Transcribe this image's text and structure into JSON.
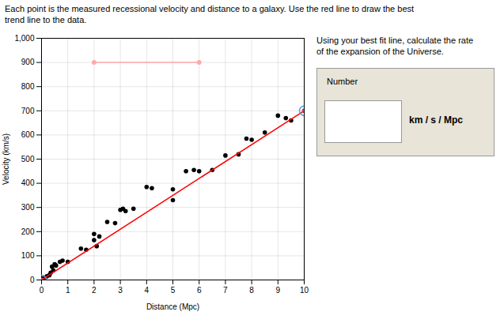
{
  "chart_data": {
    "type": "scatter",
    "title": "Each point is the measured recessional velocity and distance to a galaxy. Use the red line to draw the best\ntrend line to the data.",
    "xlabel": "Distance (Mpc)",
    "ylabel": "Velocity (km/s)",
    "xlim": [
      0,
      10
    ],
    "ylim": [
      0,
      1000
    ],
    "xticks": [
      0,
      1,
      2,
      3,
      4,
      5,
      6,
      7,
      8,
      9,
      10
    ],
    "yticks": [
      0,
      100,
      200,
      300,
      400,
      500,
      600,
      700,
      800,
      900,
      1000
    ],
    "grid": true,
    "series": [
      {
        "type": "scatter",
        "color": "#000000",
        "marker": "circle",
        "x": [
          0.0,
          0.1,
          0.2,
          0.3,
          0.35,
          0.4,
          0.45,
          0.5,
          0.55,
          0.7,
          0.8,
          1.0,
          1.5,
          1.7,
          2.0,
          2.0,
          2.1,
          2.2,
          2.5,
          2.8,
          3.0,
          3.1,
          3.2,
          3.5,
          4.0,
          4.2,
          5.0,
          5.0,
          5.5,
          5.8,
          6.0,
          6.5,
          7.0,
          7.5,
          7.8,
          8.0,
          8.5,
          9.0,
          9.3,
          9.5,
          10.0
        ],
        "values": [
          0.0,
          10.0,
          15.0,
          20.0,
          30.0,
          55.0,
          40.0,
          65.0,
          60.0,
          75.0,
          80.0,
          75.0,
          130.0,
          125.0,
          165.0,
          190.0,
          140.0,
          180.0,
          240.0,
          235.0,
          290.0,
          295.0,
          285.0,
          295.0,
          385.0,
          380.0,
          330.0,
          375.0,
          450.0,
          455.0,
          450.0,
          455.0,
          515.0,
          520.0,
          585.0,
          580.0,
          610.0,
          680.0,
          670.0,
          660.0,
          700.0
        ]
      },
      {
        "type": "line",
        "color": "#ff0000",
        "x": [
          0.0,
          10.0
        ],
        "values": [
          0.0,
          700.0
        ]
      },
      {
        "type": "scatter",
        "color": "#5599ee",
        "marker": "ring",
        "x": [
          0.0,
          10.0
        ],
        "values": [
          0.0,
          700.0
        ]
      },
      {
        "type": "scatter",
        "color": "#ee4444",
        "marker": "circle",
        "x": [
          0.0,
          10.0
        ],
        "values": [
          0.0,
          700.0
        ]
      },
      {
        "type": "line",
        "color": "#ffaaaa",
        "marker": "circle",
        "x": [
          2.0,
          6.0
        ],
        "values": [
          900.0,
          900.0
        ]
      }
    ],
    "annotations": [
      "Using your best fit line, calculate the rate\nof the expansion of the Universe.",
      "Number",
      "km / s / Mpc"
    ]
  }
}
